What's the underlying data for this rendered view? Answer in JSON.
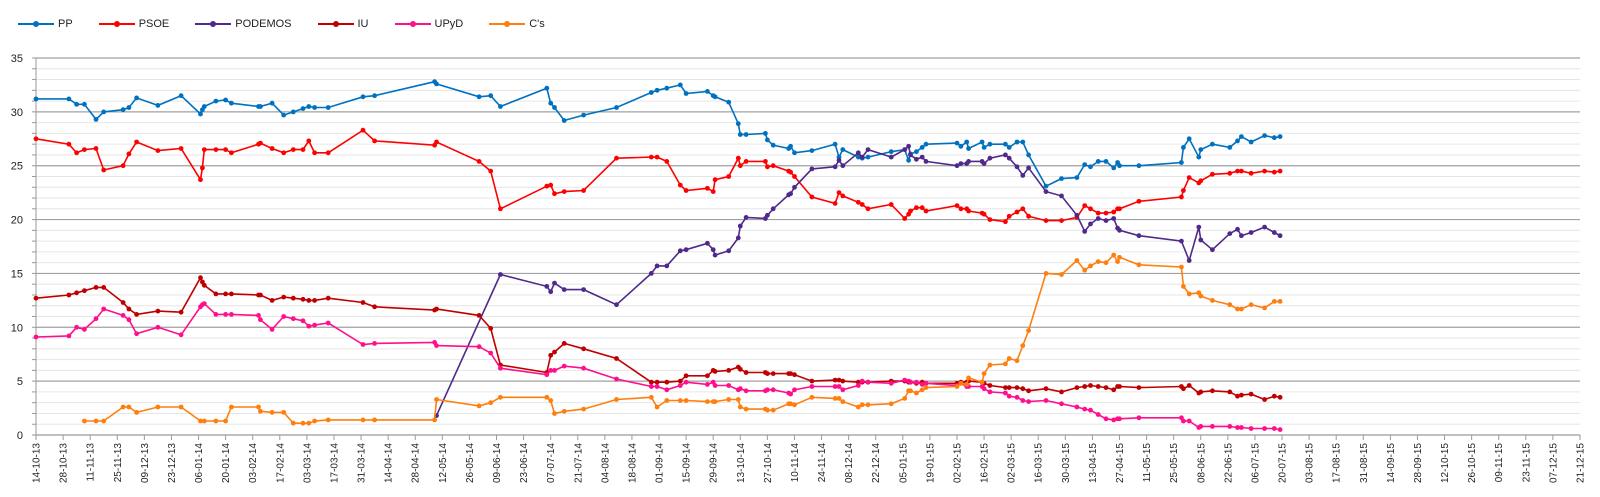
{
  "chart_data": {
    "type": "line",
    "title": "",
    "xlabel": "",
    "ylabel": "",
    "ylim": [
      0,
      35
    ],
    "y_ticks": [
      0,
      5,
      10,
      15,
      20,
      25,
      30,
      35
    ],
    "grid": "horizontal major every 5, minor every 1",
    "legend_placement": "top-left",
    "x_ticks": [
      "14-10-13",
      "28-10-13",
      "11-11-13",
      "25-11-13",
      "09-12-13",
      "23-12-13",
      "06-01-14",
      "20-01-14",
      "03-02-14",
      "17-02-14",
      "03-03-14",
      "17-03-14",
      "31-03-14",
      "14-04-14",
      "28-04-14",
      "12-05-14",
      "26-05-14",
      "09-06-14",
      "23-06-14",
      "07-07-14",
      "21-07-14",
      "04-08-14",
      "18-08-14",
      "01-09-14",
      "15-09-14",
      "29-09-14",
      "13-10-14",
      "27-10-14",
      "10-11-14",
      "24-11-14",
      "08-12-14",
      "22-12-14",
      "05-01-15",
      "19-01-15",
      "02-02-15",
      "16-02-15",
      "02-03-15",
      "16-03-15",
      "30-03-15",
      "13-04-15",
      "27-04-15",
      "11-05-15",
      "25-05-15",
      "08-06-15",
      "22-06-15",
      "06-07-15",
      "20-07-15",
      "03-08-15",
      "17-08-15",
      "31-08-15",
      "14-09-15",
      "28-09-15",
      "12-10-15",
      "26-10-15",
      "09-11-15",
      "23-11-15",
      "07-12-15",
      "21-12-15"
    ],
    "dates": [
      "14-10-13",
      "31-10-13",
      "04-11-13",
      "08-11-13",
      "14-11-13",
      "18-11-13",
      "28-11-13",
      "01-12-13",
      "05-12-13",
      "16-12-13",
      "28-12-13",
      "07-01-14",
      "08-01-14",
      "09-01-14",
      "15-01-14",
      "20-01-14",
      "23-01-14",
      "06-02-14",
      "07-02-14",
      "13-02-14",
      "19-02-14",
      "24-02-14",
      "01-03-14",
      "04-03-14",
      "07-03-14",
      "14-03-14",
      "01-04-14",
      "07-04-14",
      "08-05-14",
      "09-05-14",
      "31-05-14",
      "06-06-14",
      "11-06-14",
      "05-07-14",
      "07-07-14",
      "09-07-14",
      "14-07-14",
      "24-07-14",
      "10-08-14",
      "28-08-14",
      "31-08-14",
      "05-09-14",
      "12-09-14",
      "15-09-14",
      "26-09-14",
      "29-09-14",
      "30-09-14",
      "07-10-14",
      "12-10-14",
      "13-10-14",
      "16-10-14",
      "26-10-14",
      "27-10-14",
      "30-10-14",
      "07-11-14",
      "08-11-14",
      "10-11-14",
      "19-11-14",
      "01-12-14",
      "03-12-14",
      "05-12-14",
      "13-12-14",
      "15-12-14",
      "18-12-14",
      "30-12-14",
      "06-01-15",
      "08-01-15",
      "09-01-15",
      "12-01-15",
      "15-01-15",
      "17-01-15",
      "02-02-15",
      "04-02-15",
      "07-02-15",
      "08-02-15",
      "15-02-15",
      "16-02-15",
      "19-02-15",
      "27-02-15",
      "01-03-15",
      "05-03-15",
      "08-03-15",
      "11-03-15",
      "20-03-15",
      "28-03-15",
      "05-04-15",
      "09-04-15",
      "12-04-15",
      "16-04-15",
      "20-04-15",
      "24-04-15",
      "26-04-15",
      "27-04-15",
      "07-05-15",
      "29-05-15",
      "30-05-15",
      "02-06-15",
      "07-06-15",
      "08-06-15",
      "14-06-15",
      "23-06-15",
      "27-06-15",
      "29-06-15",
      "04-07-15",
      "11-07-15",
      "16-07-15",
      "19-07-15"
    ],
    "series": [
      {
        "name": "PP",
        "color": "#0070c0",
        "values": [
          31.2,
          31.2,
          30.7,
          30.7,
          29.3,
          30.0,
          30.2,
          30.4,
          31.3,
          30.6,
          31.5,
          29.8,
          30.2,
          30.5,
          31.0,
          31.1,
          30.8,
          30.5,
          30.5,
          30.8,
          29.7,
          30.0,
          30.3,
          30.5,
          30.4,
          30.4,
          31.4,
          31.5,
          32.8,
          32.6,
          31.4,
          31.5,
          30.5,
          32.2,
          30.8,
          30.4,
          29.2,
          29.7,
          30.4,
          31.8,
          32.0,
          32.2,
          32.5,
          31.7,
          31.9,
          31.5,
          31.4,
          30.9,
          28.9,
          27.9,
          27.9,
          28.0,
          27.4,
          26.9,
          26.6,
          26.8,
          26.2,
          26.4,
          27.0,
          25.8,
          26.5,
          25.8,
          25.7,
          25.8,
          26.3,
          26.5,
          25.5,
          26.1,
          26.3,
          26.7,
          27.0,
          27.1,
          26.8,
          27.2,
          26.6,
          27.2,
          26.7,
          27.0,
          27.0,
          26.7,
          27.2,
          27.2,
          26.0,
          23.1,
          23.8,
          23.9,
          25.1,
          24.9,
          25.4,
          25.4,
          24.8,
          25.3,
          25.0,
          25.0,
          25.3,
          26.7,
          27.5,
          25.8,
          26.5,
          27.0,
          26.7,
          27.3,
          27.7,
          27.2,
          27.8,
          27.6,
          27.7
        ]
      },
      {
        "name": "PSOE",
        "color": "#ff0000",
        "values": [
          27.5,
          27.0,
          26.2,
          26.5,
          26.6,
          24.6,
          25.0,
          26.1,
          27.2,
          26.4,
          26.6,
          23.7,
          24.8,
          26.5,
          26.5,
          26.5,
          26.2,
          27.0,
          27.1,
          26.6,
          26.2,
          26.5,
          26.5,
          27.3,
          26.2,
          26.2,
          28.3,
          27.3,
          26.9,
          27.2,
          25.4,
          24.5,
          21.0,
          23.1,
          23.2,
          22.4,
          22.6,
          22.7,
          25.7,
          25.8,
          25.8,
          25.4,
          23.2,
          22.7,
          22.9,
          22.6,
          23.7,
          24.0,
          25.7,
          25.0,
          25.4,
          25.4,
          24.9,
          25.0,
          24.5,
          24.4,
          24.0,
          22.1,
          21.5,
          22.5,
          22.2,
          21.6,
          21.4,
          21.0,
          21.4,
          20.1,
          20.5,
          20.8,
          21.1,
          21.1,
          20.8,
          21.3,
          21.0,
          21.0,
          20.8,
          20.6,
          20.5,
          20.0,
          19.8,
          20.3,
          20.7,
          21.0,
          20.3,
          19.9,
          19.9,
          20.2,
          21.3,
          21.0,
          20.6,
          20.6,
          20.7,
          21.0,
          21.0,
          21.7,
          22.1,
          22.7,
          23.9,
          23.4,
          23.6,
          24.2,
          24.3,
          24.5,
          24.5,
          24.3,
          24.5,
          24.4,
          24.5
        ]
      },
      {
        "name": "PODEMOS",
        "color": "#4f2a8a",
        "values": [
          null,
          null,
          null,
          null,
          null,
          null,
          null,
          null,
          null,
          null,
          null,
          null,
          null,
          null,
          null,
          null,
          null,
          null,
          null,
          null,
          null,
          null,
          null,
          null,
          null,
          null,
          null,
          null,
          null,
          1.8,
          null,
          null,
          14.9,
          13.8,
          13.3,
          14.1,
          13.5,
          13.5,
          12.1,
          15.0,
          15.7,
          15.7,
          17.1,
          17.2,
          17.8,
          17.2,
          16.7,
          17.1,
          18.3,
          19.4,
          20.2,
          20.1,
          20.4,
          21.0,
          22.3,
          22.4,
          23.0,
          24.7,
          24.9,
          25.5,
          25.0,
          26.2,
          25.8,
          26.5,
          25.8,
          26.5,
          26.8,
          26.0,
          25.6,
          25.8,
          25.4,
          25.0,
          25.2,
          25.2,
          25.4,
          25.4,
          25.2,
          25.7,
          26.0,
          25.7,
          24.9,
          24.1,
          24.8,
          22.6,
          22.2,
          20.4,
          18.9,
          19.6,
          20.1,
          19.9,
          20.1,
          19.2,
          19.0,
          18.5,
          18.0,
          null,
          16.2,
          19.3,
          18.1,
          17.2,
          18.7,
          19.1,
          18.5,
          18.8,
          19.3,
          18.8,
          18.5
        ]
      },
      {
        "name": "IU",
        "color": "#c00000",
        "values": [
          12.7,
          13.0,
          13.2,
          13.4,
          13.7,
          13.7,
          12.3,
          11.7,
          11.2,
          11.5,
          11.4,
          14.6,
          14.2,
          13.9,
          13.1,
          13.1,
          13.1,
          13.0,
          13.0,
          12.5,
          12.8,
          12.7,
          12.6,
          12.5,
          12.5,
          12.7,
          12.3,
          11.9,
          11.6,
          11.7,
          11.1,
          9.9,
          6.5,
          5.8,
          7.4,
          7.7,
          8.5,
          8.0,
          7.1,
          4.9,
          4.9,
          4.9,
          5.0,
          5.5,
          5.5,
          6.0,
          5.9,
          6.0,
          6.3,
          6.1,
          5.8,
          5.8,
          5.7,
          5.7,
          5.7,
          5.7,
          5.6,
          5.0,
          5.1,
          5.1,
          5.0,
          4.9,
          4.9,
          4.9,
          5.0,
          5.0,
          4.9,
          4.9,
          4.8,
          4.9,
          4.8,
          4.8,
          4.9,
          4.9,
          5.0,
          4.9,
          4.8,
          4.6,
          4.4,
          4.4,
          4.4,
          4.3,
          4.1,
          4.3,
          4.0,
          4.4,
          4.5,
          4.6,
          4.5,
          4.4,
          4.2,
          4.5,
          4.5,
          4.4,
          4.5,
          4.3,
          4.6,
          3.9,
          4.0,
          4.1,
          4.0,
          3.6,
          3.7,
          3.8,
          3.3,
          3.6,
          3.5
        ]
      },
      {
        "name": "UPyD",
        "color": "#ff0f8c",
        "values": [
          9.1,
          9.2,
          10.0,
          9.8,
          10.8,
          11.7,
          11.1,
          10.7,
          9.4,
          10.0,
          9.3,
          11.9,
          12.1,
          12.2,
          11.2,
          11.2,
          11.2,
          11.1,
          10.7,
          9.8,
          11.0,
          10.8,
          10.6,
          10.1,
          10.2,
          10.4,
          8.4,
          8.5,
          8.6,
          8.3,
          8.2,
          7.6,
          6.2,
          5.6,
          6.0,
          6.0,
          6.4,
          6.2,
          5.2,
          4.5,
          4.5,
          4.2,
          4.6,
          4.9,
          4.7,
          4.9,
          4.6,
          4.6,
          4.2,
          4.3,
          4.1,
          4.1,
          4.2,
          4.2,
          3.9,
          3.8,
          4.2,
          4.5,
          4.5,
          4.5,
          4.2,
          4.6,
          5.0,
          4.9,
          4.8,
          5.1,
          5.0,
          4.9,
          4.9,
          4.7,
          4.8,
          4.6,
          4.8,
          4.5,
          4.5,
          4.5,
          4.3,
          4.0,
          3.9,
          3.6,
          3.5,
          3.2,
          3.1,
          3.2,
          2.9,
          2.6,
          2.4,
          2.3,
          1.9,
          1.5,
          1.4,
          1.5,
          1.5,
          1.6,
          1.6,
          1.3,
          1.3,
          0.7,
          0.8,
          0.8,
          0.8,
          0.7,
          0.7,
          0.6,
          0.6,
          0.6,
          0.5
        ]
      },
      {
        "name": "C's",
        "color": "#ff7f0e",
        "values": [
          null,
          null,
          null,
          1.3,
          1.3,
          1.3,
          2.6,
          2.6,
          2.1,
          2.6,
          2.6,
          1.3,
          null,
          1.3,
          1.3,
          1.3,
          2.6,
          2.6,
          2.2,
          2.1,
          2.1,
          1.1,
          1.1,
          1.1,
          1.3,
          1.4,
          1.4,
          1.4,
          1.4,
          3.3,
          2.7,
          3.0,
          3.5,
          3.5,
          3.2,
          2.0,
          2.2,
          2.4,
          3.3,
          3.5,
          2.6,
          3.2,
          3.2,
          3.2,
          3.1,
          3.1,
          3.1,
          3.3,
          3.3,
          2.6,
          2.4,
          2.4,
          2.3,
          2.3,
          2.9,
          2.9,
          2.8,
          3.5,
          3.4,
          3.4,
          3.1,
          2.6,
          2.8,
          2.8,
          2.9,
          3.4,
          4.1,
          4.1,
          3.9,
          4.2,
          4.4,
          4.5,
          4.8,
          4.7,
          5.3,
          4.9,
          5.7,
          6.5,
          6.6,
          7.1,
          6.9,
          8.3,
          9.7,
          15.0,
          14.9,
          16.2,
          15.3,
          15.7,
          16.1,
          16.0,
          16.7,
          16.1,
          16.5,
          15.8,
          15.6,
          13.8,
          13.1,
          13.2,
          12.9,
          12.5,
          12.1,
          11.7,
          11.7,
          12.1,
          11.8,
          12.4,
          12.4
        ]
      }
    ]
  }
}
